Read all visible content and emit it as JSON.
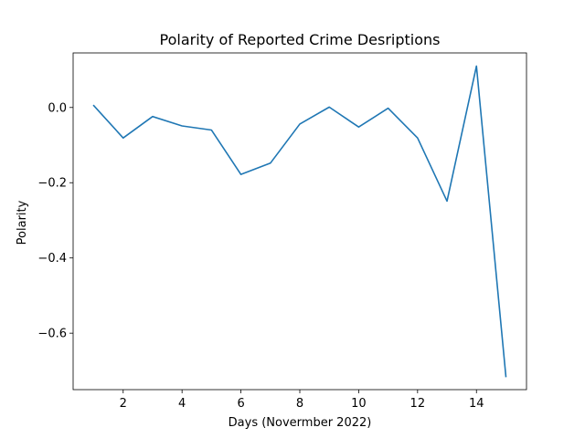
{
  "chart_data": {
    "type": "line",
    "title": "Polarity of Reported Crime Desriptions",
    "xlabel": "Days (Novermber 2022)",
    "ylabel": "Polarity",
    "xlim": [
      0.3,
      15.7
    ],
    "ylim": [
      -0.75,
      0.145
    ],
    "xticks": [
      2,
      4,
      6,
      8,
      10,
      12,
      14
    ],
    "xtick_labels": [
      "2",
      "4",
      "6",
      "8",
      "10",
      "12",
      "14"
    ],
    "yticks": [
      0.0,
      -0.2,
      -0.4,
      -0.6
    ],
    "ytick_labels": [
      "0.0",
      "−0.2",
      "−0.4",
      "−0.6"
    ],
    "grid": false,
    "series": [
      {
        "color": "#1f77b4",
        "x": [
          1,
          2,
          3,
          4,
          5,
          6,
          7,
          8,
          9,
          10,
          11,
          12,
          13,
          14,
          15
        ],
        "y": [
          0.005,
          -0.081,
          -0.024,
          -0.049,
          -0.06,
          -0.178,
          -0.148,
          -0.044,
          0.001,
          -0.052,
          -0.002,
          -0.081,
          -0.249,
          0.11,
          -0.715
        ]
      }
    ]
  }
}
